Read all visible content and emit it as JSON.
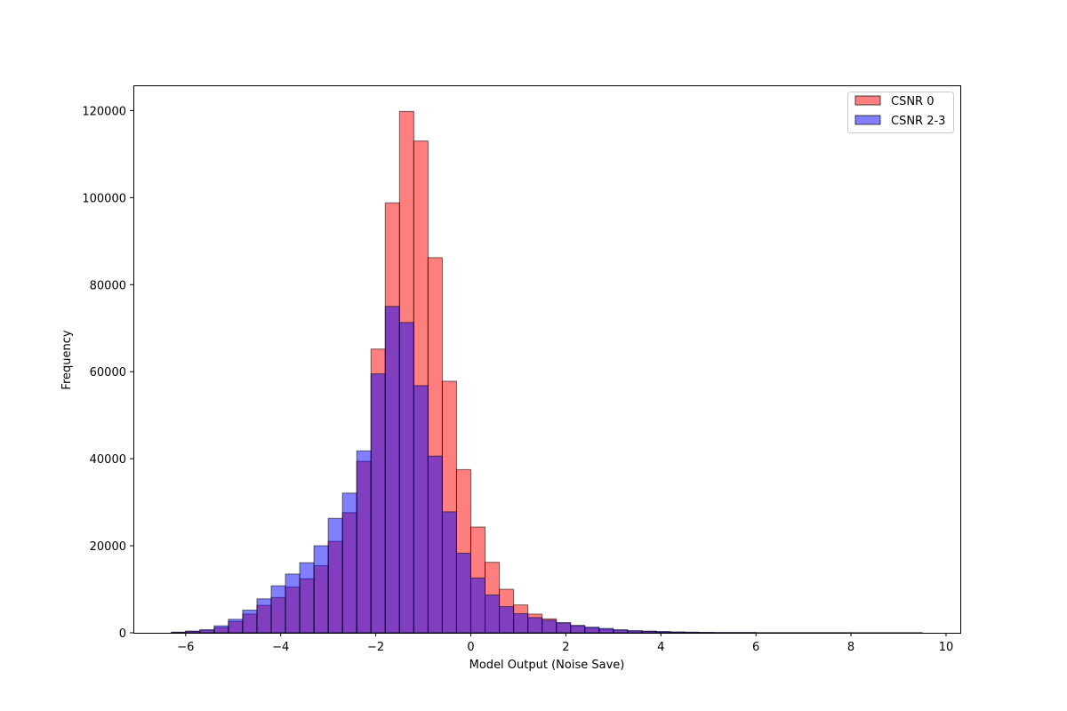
{
  "chart_data": {
    "type": "bar",
    "histogram": true,
    "title": "",
    "xlabel": "Model Output (Noise Save)",
    "ylabel": "Frequency",
    "xlim": [
      -7.1,
      10.3
    ],
    "ylim": [
      0,
      125800
    ],
    "xticks": [
      -6,
      -4,
      -2,
      0,
      2,
      4,
      6,
      8,
      10
    ],
    "xtick_labels": [
      "−6",
      "−4",
      "−2",
      "0",
      "2",
      "4",
      "6",
      "8",
      "10"
    ],
    "yticks": [
      0,
      20000,
      40000,
      60000,
      80000,
      100000,
      120000
    ],
    "ytick_labels": [
      "0",
      "20000",
      "40000",
      "60000",
      "80000",
      "100000",
      "120000"
    ],
    "grid": false,
    "legend_position": "top-right",
    "series": [
      {
        "name": "CSNR 0",
        "color": "#ff0000",
        "alpha": 0.5,
        "edgecolor": "#000000",
        "bins": [
          [
            -6.3,
            -6.0,
            100
          ],
          [
            -6.0,
            -5.7,
            300
          ],
          [
            -5.7,
            -5.4,
            600
          ],
          [
            -5.4,
            -5.1,
            1200
          ],
          [
            -5.1,
            -4.8,
            2600
          ],
          [
            -4.8,
            -4.5,
            4300
          ],
          [
            -4.5,
            -4.2,
            6300
          ],
          [
            -4.2,
            -3.9,
            8100
          ],
          [
            -3.9,
            -3.6,
            10500
          ],
          [
            -3.6,
            -3.3,
            12400
          ],
          [
            -3.3,
            -3.0,
            15400
          ],
          [
            -3.0,
            -2.7,
            21000
          ],
          [
            -2.7,
            -2.4,
            27600
          ],
          [
            -2.4,
            -2.1,
            39400
          ],
          [
            -2.1,
            -1.8,
            65200
          ],
          [
            -1.8,
            -1.5,
            98800
          ],
          [
            -1.5,
            -1.2,
            119800
          ],
          [
            -1.2,
            -0.9,
            113000
          ],
          [
            -0.9,
            -0.6,
            86200
          ],
          [
            -0.6,
            -0.3,
            57800
          ],
          [
            -0.3,
            0.0,
            37500
          ],
          [
            0.0,
            0.3,
            24300
          ],
          [
            0.3,
            0.6,
            16200
          ],
          [
            0.6,
            0.9,
            10000
          ],
          [
            0.9,
            1.2,
            6400
          ],
          [
            1.2,
            1.5,
            4300
          ],
          [
            1.5,
            1.8,
            3200
          ],
          [
            1.8,
            2.1,
            2300
          ],
          [
            2.1,
            2.4,
            1600
          ],
          [
            2.4,
            2.7,
            1100
          ],
          [
            2.7,
            3.0,
            800
          ],
          [
            3.0,
            3.3,
            600
          ],
          [
            3.3,
            3.6,
            400
          ],
          [
            3.6,
            3.9,
            300
          ],
          [
            3.9,
            4.2,
            200
          ],
          [
            4.2,
            4.5,
            150
          ],
          [
            4.5,
            4.8,
            100
          ],
          [
            4.8,
            5.1,
            80
          ],
          [
            5.1,
            6.0,
            50
          ],
          [
            6.0,
            8.0,
            20
          ],
          [
            8.0,
            9.5,
            10
          ]
        ]
      },
      {
        "name": "CSNR 2-3",
        "color": "#0000ff",
        "alpha": 0.5,
        "edgecolor": "#000000",
        "bins": [
          [
            -6.3,
            -6.0,
            150
          ],
          [
            -6.0,
            -5.7,
            400
          ],
          [
            -5.7,
            -5.4,
            700
          ],
          [
            -5.4,
            -5.1,
            1600
          ],
          [
            -5.1,
            -4.8,
            3100
          ],
          [
            -4.8,
            -4.5,
            5200
          ],
          [
            -4.5,
            -4.2,
            7800
          ],
          [
            -4.2,
            -3.9,
            10800
          ],
          [
            -3.9,
            -3.6,
            13500
          ],
          [
            -3.6,
            -3.3,
            16100
          ],
          [
            -3.3,
            -3.0,
            20000
          ],
          [
            -3.0,
            -2.7,
            26300
          ],
          [
            -2.7,
            -2.4,
            32100
          ],
          [
            -2.4,
            -2.1,
            41800
          ],
          [
            -2.1,
            -1.8,
            59500
          ],
          [
            -1.8,
            -1.5,
            75000
          ],
          [
            -1.5,
            -1.2,
            71300
          ],
          [
            -1.2,
            -0.9,
            56800
          ],
          [
            -0.9,
            -0.6,
            40600
          ],
          [
            -0.6,
            -0.3,
            27800
          ],
          [
            -0.3,
            0.0,
            18300
          ],
          [
            0.0,
            0.3,
            12600
          ],
          [
            0.3,
            0.6,
            8700
          ],
          [
            0.6,
            0.9,
            6000
          ],
          [
            0.9,
            1.2,
            4400
          ],
          [
            1.2,
            1.5,
            3500
          ],
          [
            1.5,
            1.8,
            2900
          ],
          [
            1.8,
            2.1,
            2300
          ],
          [
            2.1,
            2.4,
            1700
          ],
          [
            2.4,
            2.7,
            1300
          ],
          [
            2.7,
            3.0,
            1000
          ],
          [
            3.0,
            3.3,
            700
          ],
          [
            3.3,
            3.6,
            500
          ],
          [
            3.6,
            3.9,
            400
          ],
          [
            3.9,
            4.2,
            300
          ],
          [
            4.2,
            4.5,
            200
          ],
          [
            4.5,
            4.8,
            150
          ],
          [
            4.8,
            5.1,
            100
          ],
          [
            5.1,
            6.0,
            70
          ],
          [
            6.0,
            8.0,
            30
          ],
          [
            8.0,
            9.5,
            15
          ]
        ]
      }
    ]
  }
}
